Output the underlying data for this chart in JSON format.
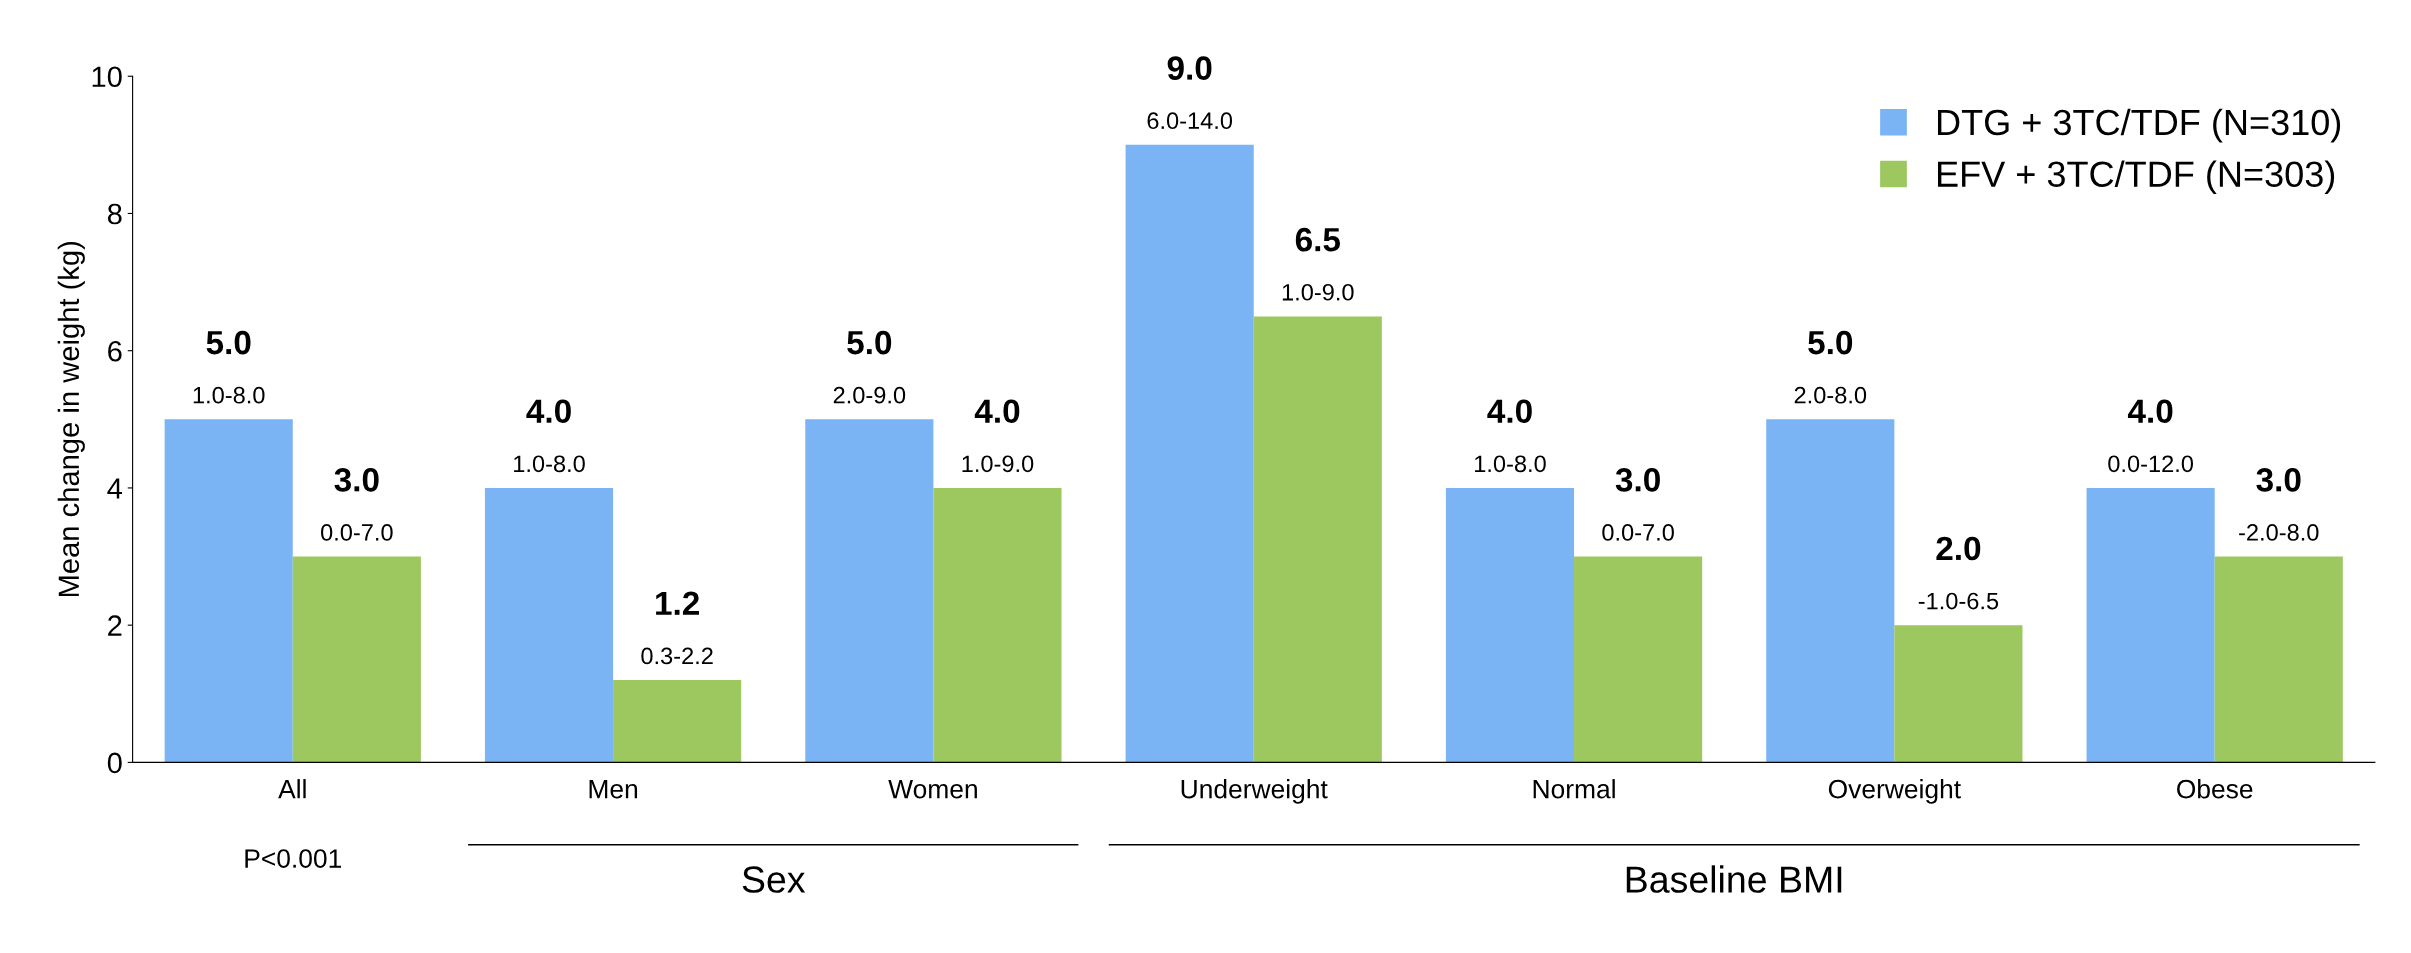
{
  "chart_data": {
    "type": "bar",
    "ylabel": "Mean change in weight (kg)",
    "categories": [
      "All",
      "Men",
      "Women",
      "Underweight",
      "Normal",
      "Overweight",
      "Obese"
    ],
    "series": [
      {
        "name": "DTG + 3TC/TDF (N=310)",
        "color": "#7ab4f5",
        "values": [
          5.0,
          4.0,
          5.0,
          9.0,
          4.0,
          5.0,
          4.0
        ],
        "value_labels": [
          "5.0\n1.0-8.0",
          "4.0\n1.0-8.0",
          "5.0\n2.0-9.0",
          "9.0\n6.0-14.0",
          "4.0\n1.0-8.0",
          "5.0\n2.0-8.0",
          "4.0\n0.0-12.0"
        ]
      },
      {
        "name": "EFV + 3TC/TDF (N=303)",
        "color": "#9dc75f",
        "values": [
          3.0,
          1.2,
          4.0,
          6.5,
          3.0,
          2.0,
          3.0
        ],
        "value_labels": [
          "3.0\n0.0-7.0",
          "1.2\n0.3-2.2",
          "4.0\n1.0-9.0",
          "6.5\n1.0-9.0",
          "3.0\n0.0-7.0",
          "2.0\n-1.0-6.5",
          "3.0\n-2.0-8.0"
        ]
      }
    ],
    "ylim": [
      0,
      10
    ],
    "yticks": [
      0,
      2,
      4,
      6,
      8,
      10
    ],
    "grid": false,
    "legend": "top right",
    "annotations": [
      "P<0.001",
      "Sex",
      "Baseline BMI"
    ]
  }
}
